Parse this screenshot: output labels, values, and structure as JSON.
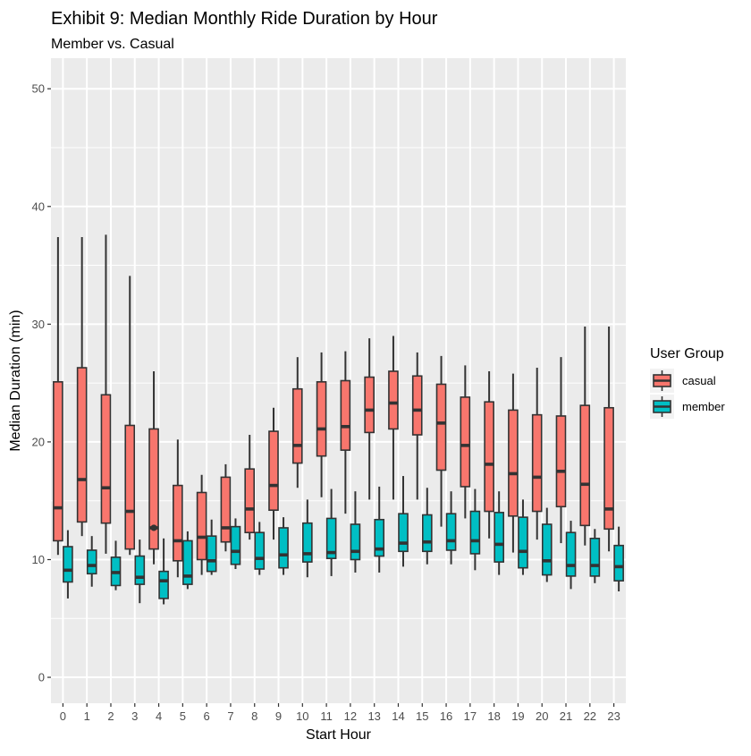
{
  "chart_data": {
    "type": "boxplot",
    "title": "Exhibit 9: Median Monthly Ride Duration by Hour",
    "subtitle": "Member vs. Casual",
    "xlabel": "Start Hour",
    "ylabel": "Median Duration (min)",
    "ylim": [
      -2.2,
      52.6
    ],
    "yticks": [
      0,
      10,
      20,
      30,
      40,
      50
    ],
    "categories": [
      "0",
      "1",
      "2",
      "3",
      "4",
      "5",
      "6",
      "7",
      "8",
      "9",
      "10",
      "11",
      "12",
      "13",
      "14",
      "15",
      "16",
      "17",
      "18",
      "19",
      "20",
      "21",
      "22",
      "23"
    ],
    "legend": {
      "title": "User Group",
      "position": "right",
      "entries": [
        "casual",
        "member"
      ]
    },
    "colors": {
      "casual": "#F8766D",
      "member": "#00BFC4",
      "panel": "#EBEBEB",
      "grid": "#FFFFFF",
      "outline": "#333333"
    },
    "series": [
      {
        "name": "casual",
        "boxes": [
          {
            "lw": 10.4,
            "q1": 11.6,
            "med": 14.4,
            "q3": 25.1,
            "uw": 37.4,
            "out": []
          },
          {
            "lw": 12.0,
            "q1": 13.2,
            "med": 16.8,
            "q3": 26.3,
            "uw": 37.4,
            "out": []
          },
          {
            "lw": 10.5,
            "q1": 13.1,
            "med": 16.1,
            "q3": 24.0,
            "uw": 37.6,
            "out": []
          },
          {
            "lw": 10.4,
            "q1": 10.9,
            "med": 14.1,
            "q3": 21.4,
            "uw": 34.1,
            "out": []
          },
          {
            "lw": 9.6,
            "q1": 10.9,
            "med": 12.7,
            "q3": 21.1,
            "uw": 26.0,
            "out": [
              12.7
            ]
          },
          {
            "lw": 8.5,
            "q1": 9.9,
            "med": 11.6,
            "q3": 16.3,
            "uw": 20.2,
            "out": []
          },
          {
            "lw": 8.7,
            "q1": 10.0,
            "med": 11.9,
            "q3": 15.7,
            "uw": 17.2,
            "out": []
          },
          {
            "lw": 10.7,
            "q1": 11.5,
            "med": 12.7,
            "q3": 17.0,
            "uw": 18.1,
            "out": []
          },
          {
            "lw": 11.7,
            "q1": 12.3,
            "med": 14.3,
            "q3": 17.7,
            "uw": 20.6,
            "out": []
          },
          {
            "lw": 11.7,
            "q1": 14.2,
            "med": 16.3,
            "q3": 20.9,
            "uw": 22.9,
            "out": []
          },
          {
            "lw": 16.1,
            "q1": 18.2,
            "med": 19.7,
            "q3": 24.5,
            "uw": 27.2,
            "out": []
          },
          {
            "lw": 15.3,
            "q1": 18.8,
            "med": 21.1,
            "q3": 25.1,
            "uw": 27.6,
            "out": []
          },
          {
            "lw": 13.9,
            "q1": 19.3,
            "med": 21.3,
            "q3": 25.2,
            "uw": 27.7,
            "out": []
          },
          {
            "lw": 15.1,
            "q1": 20.8,
            "med": 22.7,
            "q3": 25.5,
            "uw": 28.8,
            "out": []
          },
          {
            "lw": 15.1,
            "q1": 21.1,
            "med": 23.3,
            "q3": 26.0,
            "uw": 29.0,
            "out": []
          },
          {
            "lw": 15.1,
            "q1": 20.6,
            "med": 22.7,
            "q3": 25.6,
            "uw": 27.6,
            "out": []
          },
          {
            "lw": 12.8,
            "q1": 17.6,
            "med": 21.6,
            "q3": 24.9,
            "uw": 27.3,
            "out": []
          },
          {
            "lw": 13.5,
            "q1": 16.2,
            "med": 19.7,
            "q3": 23.8,
            "uw": 26.5,
            "out": []
          },
          {
            "lw": 11.8,
            "q1": 14.1,
            "med": 18.1,
            "q3": 23.4,
            "uw": 26.0,
            "out": []
          },
          {
            "lw": 10.6,
            "q1": 13.7,
            "med": 17.3,
            "q3": 22.7,
            "uw": 25.8,
            "out": []
          },
          {
            "lw": 11.7,
            "q1": 14.1,
            "med": 17.0,
            "q3": 22.3,
            "uw": 26.3,
            "out": []
          },
          {
            "lw": 11.4,
            "q1": 14.5,
            "med": 17.5,
            "q3": 22.2,
            "uw": 27.2,
            "out": []
          },
          {
            "lw": 11.2,
            "q1": 12.9,
            "med": 16.4,
            "q3": 23.1,
            "uw": 29.8,
            "out": []
          },
          {
            "lw": 10.7,
            "q1": 12.6,
            "med": 14.3,
            "q3": 22.9,
            "uw": 29.8,
            "out": []
          }
        ]
      },
      {
        "name": "member",
        "boxes": [
          {
            "lw": 6.7,
            "q1": 8.1,
            "med": 9.1,
            "q3": 11.1,
            "uw": 12.5,
            "out": []
          },
          {
            "lw": 7.7,
            "q1": 8.8,
            "med": 9.5,
            "q3": 10.8,
            "uw": 12.0,
            "out": []
          },
          {
            "lw": 7.4,
            "q1": 7.8,
            "med": 8.9,
            "q3": 10.2,
            "uw": 11.6,
            "out": []
          },
          {
            "lw": 6.3,
            "q1": 7.9,
            "med": 8.5,
            "q3": 10.3,
            "uw": 11.7,
            "out": []
          },
          {
            "lw": 6.2,
            "q1": 6.7,
            "med": 8.2,
            "q3": 9.0,
            "uw": 11.8,
            "out": []
          },
          {
            "lw": 7.5,
            "q1": 7.9,
            "med": 8.6,
            "q3": 11.6,
            "uw": 12.4,
            "out": []
          },
          {
            "lw": 8.7,
            "q1": 9.0,
            "med": 9.9,
            "q3": 12.0,
            "uw": 13.4,
            "out": []
          },
          {
            "lw": 9.2,
            "q1": 9.6,
            "med": 10.7,
            "q3": 12.8,
            "uw": 13.5,
            "out": []
          },
          {
            "lw": 8.7,
            "q1": 9.2,
            "med": 10.1,
            "q3": 12.3,
            "uw": 13.2,
            "out": []
          },
          {
            "lw": 8.7,
            "q1": 9.3,
            "med": 10.4,
            "q3": 12.7,
            "uw": 13.6,
            "out": []
          },
          {
            "lw": 8.5,
            "q1": 9.8,
            "med": 10.5,
            "q3": 13.1,
            "uw": 15.1,
            "out": []
          },
          {
            "lw": 8.6,
            "q1": 10.1,
            "med": 10.6,
            "q3": 13.5,
            "uw": 16.0,
            "out": []
          },
          {
            "lw": 8.9,
            "q1": 10.0,
            "med": 10.7,
            "q3": 13.0,
            "uw": 15.8,
            "out": []
          },
          {
            "lw": 8.9,
            "q1": 10.3,
            "med": 10.9,
            "q3": 13.4,
            "uw": 16.2,
            "out": []
          },
          {
            "lw": 9.4,
            "q1": 10.7,
            "med": 11.4,
            "q3": 13.9,
            "uw": 17.1,
            "out": []
          },
          {
            "lw": 9.6,
            "q1": 10.7,
            "med": 11.5,
            "q3": 13.8,
            "uw": 16.1,
            "out": []
          },
          {
            "lw": 9.6,
            "q1": 10.8,
            "med": 11.6,
            "q3": 13.9,
            "uw": 15.8,
            "out": []
          },
          {
            "lw": 9.1,
            "q1": 10.5,
            "med": 11.6,
            "q3": 14.1,
            "uw": 16.0,
            "out": []
          },
          {
            "lw": 8.7,
            "q1": 9.8,
            "med": 11.3,
            "q3": 14.0,
            "uw": 15.8,
            "out": []
          },
          {
            "lw": 8.7,
            "q1": 9.3,
            "med": 10.7,
            "q3": 13.6,
            "uw": 15.1,
            "out": []
          },
          {
            "lw": 8.1,
            "q1": 8.7,
            "med": 9.9,
            "q3": 13.0,
            "uw": 14.4,
            "out": []
          },
          {
            "lw": 7.5,
            "q1": 8.6,
            "med": 9.5,
            "q3": 12.3,
            "uw": 13.3,
            "out": []
          },
          {
            "lw": 8.0,
            "q1": 8.6,
            "med": 9.5,
            "q3": 11.8,
            "uw": 12.6,
            "out": []
          },
          {
            "lw": 7.3,
            "q1": 8.2,
            "med": 9.4,
            "q3": 11.2,
            "uw": 12.8,
            "out": []
          }
        ]
      }
    ]
  }
}
